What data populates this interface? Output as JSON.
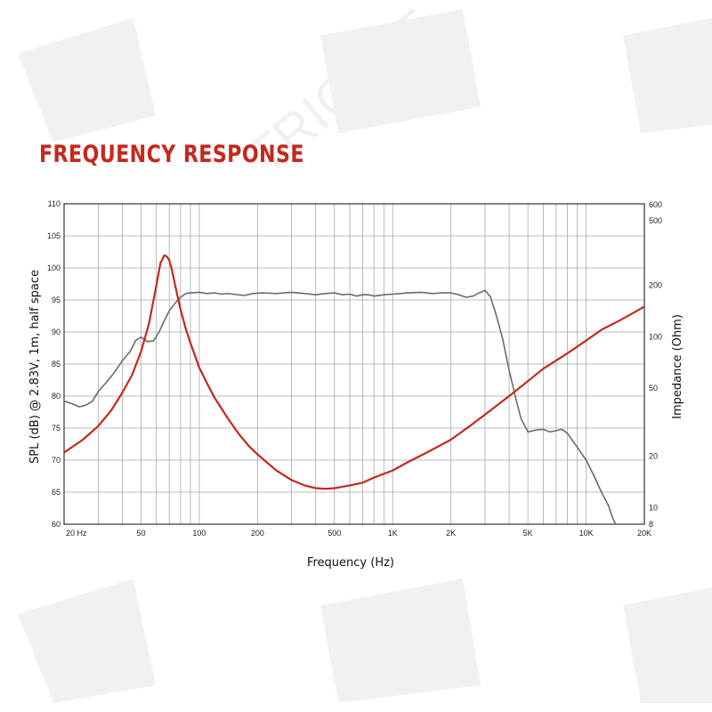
{
  "colors": {
    "accent": "#c5281c",
    "spl": "#6b6b6b",
    "impedance": "#c5281c",
    "grid": "#a8a8a8"
  },
  "title": "FREQUENCY RESPONSE",
  "watermark": "TRICATE",
  "chart_data": {
    "type": "line",
    "title": "FREQUENCY RESPONSE",
    "xlabel": "Frequency (Hz)",
    "ylabel": "SPL (dB) @ 2.83V, 1m, half space",
    "y2label": "Impedance (Ohm)",
    "x_scale": "log",
    "xlim": [
      20,
      20000
    ],
    "ylim": [
      60,
      110
    ],
    "y2_scale": "log",
    "y2lim": [
      8,
      600
    ],
    "grid": true,
    "x_ticks": [
      {
        "value": 20,
        "label": "20  Hz"
      },
      {
        "value": 50,
        "label": "50"
      },
      {
        "value": 100,
        "label": "100"
      },
      {
        "value": 200,
        "label": "200"
      },
      {
        "value": 500,
        "label": "500"
      },
      {
        "value": 1000,
        "label": "1K"
      },
      {
        "value": 2000,
        "label": "2K"
      },
      {
        "value": 5000,
        "label": "5K"
      },
      {
        "value": 10000,
        "label": "10K"
      },
      {
        "value": 20000,
        "label": "20K"
      }
    ],
    "y_ticks": [
      60,
      65,
      70,
      75,
      80,
      85,
      90,
      95,
      100,
      105,
      110
    ],
    "y2_ticks": [
      {
        "value": 8,
        "label": "8"
      },
      {
        "value": 10,
        "label": "10"
      },
      {
        "value": 20,
        "label": "20"
      },
      {
        "value": 50,
        "label": "50"
      },
      {
        "value": 100,
        "label": "100"
      },
      {
        "value": 200,
        "label": "200"
      },
      {
        "value": 500,
        "label": "500"
      },
      {
        "value": 600,
        "label": "600"
      }
    ],
    "series": [
      {
        "axis": "left",
        "x": [
          20,
          22,
          24,
          26,
          28,
          30,
          33,
          36,
          40,
          44,
          47,
          50,
          54,
          58,
          62,
          66,
          70,
          75,
          80,
          85,
          90,
          100,
          110,
          120,
          130,
          140,
          150,
          170,
          190,
          210,
          250,
          300,
          350,
          400,
          450,
          500,
          550,
          600,
          650,
          700,
          750,
          800,
          900,
          1000,
          1100,
          1200,
          1400,
          1600,
          1800,
          2000,
          2200,
          2400,
          2600,
          2800,
          3000,
          3200,
          3400,
          3700,
          4000,
          4300,
          4600,
          5000,
          5500,
          6000,
          6500,
          7000,
          7500,
          8000,
          9000,
          10000,
          11000,
          12000,
          13000,
          13700,
          14200
        ],
        "y": [
          79.2,
          78.8,
          78.3,
          78.6,
          79.2,
          80.7,
          82.1,
          83.5,
          85.5,
          87.0,
          88.7,
          89.2,
          88.5,
          88.6,
          90.0,
          91.8,
          93.3,
          94.5,
          95.4,
          96.0,
          96.1,
          96.2,
          96.0,
          96.1,
          95.9,
          96.0,
          95.9,
          95.7,
          96.0,
          96.1,
          96.0,
          96.2,
          96.0,
          95.8,
          96.0,
          96.1,
          95.8,
          95.9,
          95.6,
          95.8,
          95.8,
          95.6,
          95.8,
          95.9,
          96.0,
          96.1,
          96.2,
          96.0,
          96.1,
          96.1,
          95.8,
          95.4,
          95.6,
          96.1,
          96.5,
          95.5,
          93.0,
          89.0,
          84.0,
          80.0,
          76.5,
          74.4,
          74.7,
          74.8,
          74.4,
          74.6,
          74.8,
          74.2,
          72.0,
          70.0,
          67.5,
          65.0,
          63.0,
          61.0,
          60.0
        ]
      },
      {
        "axis": "right",
        "x": [
          20,
          25,
          30,
          35,
          40,
          45,
          50,
          55,
          60,
          63,
          66,
          68,
          70,
          72,
          75,
          80,
          85,
          90,
          100,
          110,
          120,
          140,
          160,
          180,
          200,
          250,
          300,
          350,
          400,
          450,
          500,
          600,
          700,
          800,
          1000,
          1200,
          1500,
          2000,
          2500,
          3000,
          4000,
          5000,
          6000,
          8000,
          10000,
          12000,
          15000,
          20000
        ],
        "y": [
          21,
          25,
          30,
          37,
          47,
          60,
          82,
          120,
          200,
          270,
          300,
          295,
          280,
          250,
          200,
          145,
          112,
          92,
          66,
          53,
          44,
          33.5,
          27,
          23,
          20.5,
          16.5,
          14.5,
          13.5,
          13,
          12.9,
          13,
          13.5,
          14,
          15,
          16.5,
          18.5,
          21,
          25,
          30,
          35,
          45,
          55,
          65,
          80,
          95,
          110,
          125,
          150
        ]
      }
    ]
  }
}
